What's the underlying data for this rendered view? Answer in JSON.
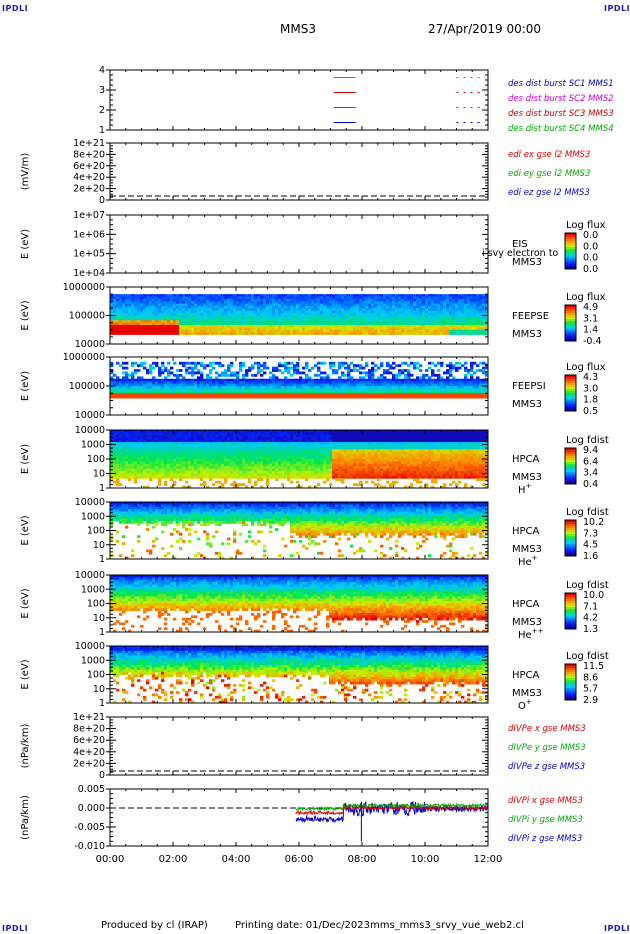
{
  "header": {
    "corner_text": "IPDLI",
    "mission": "MMS3",
    "date": "27/Apr/2019 00:00"
  },
  "footer": {
    "produced_by": "Produced by cl (IRAP)",
    "printing_date": "Printing date: 01/Dec/2023",
    "script_name": "mms_mms3_srvy_vue_web2.cl"
  },
  "x_axis": {
    "ticks": [
      "00:00",
      "02:00",
      "04:00",
      "06:00",
      "08:00",
      "10:00",
      "12:00"
    ],
    "range_hours": [
      0,
      12
    ]
  },
  "colors": {
    "mms1": "#00bb00",
    "mms2": "#cc0000",
    "mms3": "#cc00cc",
    "mms4": "#0000cc",
    "red": "#dd0000",
    "green": "#00aa00",
    "blue": "#0000cc"
  },
  "chart_data": [
    {
      "name": "burst",
      "type": "line",
      "ylim": [
        0.5,
        4.5
      ],
      "y_ticks": [
        "1",
        "2",
        "3",
        "4"
      ],
      "segments": [
        {
          "y": 4,
          "color": "green",
          "intervals": [
            [
              7.1,
              7.8
            ],
            [
              11.0,
              11.9
            ]
          ]
        },
        {
          "y": 3,
          "color": "red",
          "intervals": [
            [
              7.1,
              7.8
            ],
            [
              11.0,
              11.9
            ]
          ]
        },
        {
          "y": 2,
          "color": "magenta",
          "intervals": [
            [
              7.1,
              7.8
            ],
            [
              11.0,
              11.9
            ]
          ]
        },
        {
          "y": 1,
          "color": "blue",
          "intervals": [
            [
              7.1,
              7.8
            ],
            [
              11.0,
              11.9
            ]
          ]
        }
      ],
      "legend": [
        {
          "text": "des dist burst SC1 MMS1",
          "color": "#0000cc"
        },
        {
          "text": "des dist burst SC2 MMS2",
          "color": "#cc00cc"
        },
        {
          "text": "des dist burst SC3 MMS3",
          "color": "#cc0000"
        },
        {
          "text": "des dist burst SC4 MMS4",
          "color": "#00aa00"
        }
      ]
    },
    {
      "name": "edi",
      "type": "line",
      "ylabel": "(mV/m)",
      "y_ticks": [
        "0",
        "2e+20",
        "4e+20",
        "6e+20",
        "8e+20",
        "1e+21"
      ],
      "legend": [
        {
          "text": "edi ex gse l2 MMS3",
          "color": "#dd0000"
        },
        {
          "text": "edi ey gse l2 MMS3",
          "color": "#00aa00"
        },
        {
          "text": "edi ez gse l2 MMS3",
          "color": "#0000cc"
        }
      ]
    },
    {
      "name": "eis",
      "type": "heatmap",
      "ylabel": "E (eV)",
      "y_ticks": [
        "1e+04",
        "1e+05",
        "1e+06",
        "1e+07"
      ],
      "label_main": "EIS",
      "label_sub": "MMS3",
      "overlay_text": "i svy electron to",
      "cbar_title": "Log flux",
      "cbar_ticks": [
        "0.0",
        "0.0",
        "0.0",
        "0.0"
      ]
    },
    {
      "name": "feepse",
      "type": "heatmap",
      "ylabel": "E (eV)",
      "y_ticks": [
        "10000",
        "100000",
        "1000000"
      ],
      "label_main": "FEEPSE",
      "label_sub": "MMS3",
      "cbar_title": "Log flux",
      "cbar_ticks": [
        "4.9",
        "3.1",
        "1.4",
        "-0.4"
      ]
    },
    {
      "name": "feepsi",
      "type": "heatmap",
      "ylabel": "E (eV)",
      "y_ticks": [
        "10000",
        "100000",
        "1000000"
      ],
      "label_main": "FEEPSI",
      "label_sub": "MMS3",
      "cbar_title": "Log flux",
      "cbar_ticks": [
        "4.3",
        "3.0",
        "1.8",
        "0.5"
      ]
    },
    {
      "name": "hpca_h",
      "type": "heatmap",
      "ylabel": "E (eV)",
      "y_ticks": [
        "1",
        "10",
        "100",
        "1000",
        "10000"
      ],
      "label_main": "HPCA",
      "label_sub": "MMS3",
      "species": "H",
      "species_sup": "+",
      "cbar_title": "Log fdist",
      "cbar_ticks": [
        "9.4",
        "6.4",
        "3.4",
        "0.4"
      ]
    },
    {
      "name": "hpca_he",
      "type": "heatmap",
      "ylabel": "E (eV)",
      "y_ticks": [
        "1",
        "10",
        "100",
        "1000",
        "10000"
      ],
      "label_main": "HPCA",
      "label_sub": "MMS3",
      "species": "He",
      "species_sup": "+",
      "cbar_title": "Log fdist",
      "cbar_ticks": [
        "10.2",
        "7.3",
        "4.5",
        "1.6"
      ]
    },
    {
      "name": "hpca_hepp",
      "type": "heatmap",
      "ylabel": "E (eV)",
      "y_ticks": [
        "1",
        "10",
        "100",
        "1000",
        "10000"
      ],
      "label_main": "HPCA",
      "label_sub": "MMS3",
      "species": "He",
      "species_sup": "++",
      "cbar_title": "Log fdist",
      "cbar_ticks": [
        "10.0",
        "7.1",
        "4.2",
        "1.3"
      ]
    },
    {
      "name": "hpca_o",
      "type": "heatmap",
      "ylabel": "E (eV)",
      "y_ticks": [
        "1",
        "10",
        "100",
        "1000",
        "10000"
      ],
      "label_main": "HPCA",
      "label_sub": "MMS3",
      "species": "O",
      "species_sup": "+",
      "cbar_title": "Log fdist",
      "cbar_ticks": [
        "11.5",
        "8.6",
        "5.7",
        "2.9"
      ]
    },
    {
      "name": "divpe",
      "type": "line",
      "ylabel": "(nPa/km)",
      "y_ticks": [
        "0",
        "2e+20",
        "4e+20",
        "6e+20",
        "8e+20",
        "1e+21"
      ],
      "legend": [
        {
          "text": "dIVPe x gse MMS3",
          "color": "#dd0000"
        },
        {
          "text": "dIVPe y gse MMS3",
          "color": "#00aa00"
        },
        {
          "text": "dIVPe z gse MMS3",
          "color": "#0000cc"
        }
      ]
    },
    {
      "name": "divpi",
      "type": "line",
      "ylabel": "(nPa/km)",
      "ylim": [
        -0.012,
        0.006
      ],
      "y_ticks": [
        "-0.010",
        "-0.005",
        "0.000",
        "0.005"
      ],
      "series_start_hour": 5.9,
      "legend": [
        {
          "text": "dIVPi x gse MMS3",
          "color": "#dd0000"
        },
        {
          "text": "dIVPi y gse MMS3",
          "color": "#00aa00"
        },
        {
          "text": "dIVPi z gse MMS3",
          "color": "#0000cc"
        }
      ]
    }
  ]
}
